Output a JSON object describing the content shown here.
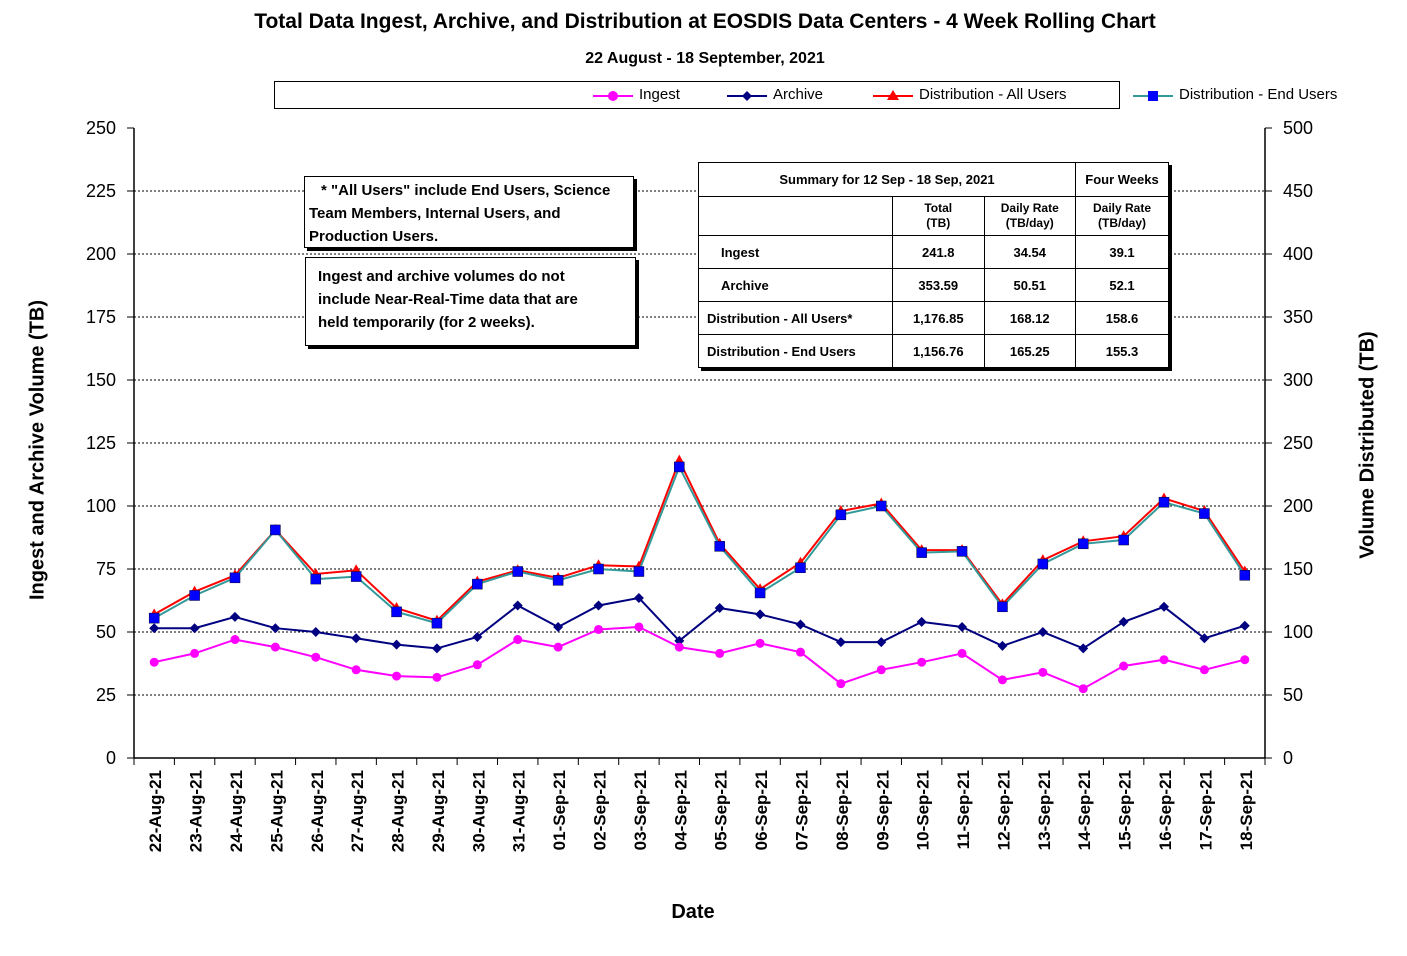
{
  "title": "Total Data Ingest, Archive, and  Distribution at EOSDIS Data Centers - 4 Week Rolling Chart",
  "subtitle": "22  August   -  18  September,  2021",
  "legend": {
    "ingest": "Ingest",
    "archive": "Archive",
    "dist_all": "Distribution - All Users",
    "dist_end": "Distribution - End Users"
  },
  "notes": {
    "all_users_line1": "* \"All Users\" include End Users, Science",
    "all_users_line2": "Team Members,  Internal Users, and",
    "all_users_line3": "Production Users.",
    "nrt_line1": "Ingest and archive volumes do not",
    "nrt_line2": "include Near-Real-Time data that are",
    "nrt_line3": "held temporarily (for 2 weeks)."
  },
  "summary": {
    "heading": "Summary  for  12  Sep   -  18  Sep,  2021",
    "four_weeks": "Four Weeks",
    "col_total_1": "Total",
    "col_total_2": "(TB)",
    "col_rate_1": "Daily Rate",
    "col_rate_2": "(TB/day)",
    "col_4w_1": "Daily Rate",
    "col_4w_2": "(TB/day)",
    "rows": [
      {
        "label": "Ingest",
        "total": "241.8",
        "rate": "34.54",
        "four": "39.1"
      },
      {
        "label": "Archive",
        "total": "353.59",
        "rate": "50.51",
        "four": "52.1"
      },
      {
        "label": "Distribution - All Users*",
        "total": "1,176.85",
        "rate": "168.12",
        "four": "158.6"
      },
      {
        "label": "Distribution - End Users",
        "total": "1,156.76",
        "rate": "165.25",
        "four": "155.3"
      }
    ]
  },
  "axis_labels": {
    "left": "Ingest and Archive Volume (TB)",
    "right": "Volume Distributed (TB)",
    "x": "Date"
  },
  "colors": {
    "ingest": "#ff00ff",
    "archive": "#000080",
    "dist_all": "#ff0000",
    "dist_end": "#0000ff",
    "dist_end_line": "#339999"
  },
  "chart_data": {
    "type": "line",
    "categories": [
      "22-Aug-21",
      "23-Aug-21",
      "24-Aug-21",
      "25-Aug-21",
      "26-Aug-21",
      "27-Aug-21",
      "28-Aug-21",
      "29-Aug-21",
      "30-Aug-21",
      "31-Aug-21",
      "01-Sep-21",
      "02-Sep-21",
      "03-Sep-21",
      "04-Sep-21",
      "05-Sep-21",
      "06-Sep-21",
      "07-Sep-21",
      "08-Sep-21",
      "09-Sep-21",
      "10-Sep-21",
      "11-Sep-21",
      "12-Sep-21",
      "13-Sep-21",
      "14-Sep-21",
      "15-Sep-21",
      "16-Sep-21",
      "17-Sep-21",
      "18-Sep-21"
    ],
    "y_left": {
      "min": 0,
      "max": 250,
      "ticks": [
        0,
        25,
        50,
        75,
        100,
        125,
        150,
        175,
        200,
        225,
        250
      ]
    },
    "y_right": {
      "min": 0,
      "max": 500,
      "ticks": [
        0,
        50,
        100,
        150,
        200,
        250,
        300,
        350,
        400,
        450,
        500
      ]
    },
    "grid": "horizontal dotted",
    "legend_position": "top",
    "series": [
      {
        "name": "Ingest",
        "axis": "left",
        "marker": "circle",
        "values": [
          38,
          41.5,
          47,
          44,
          40,
          35,
          32.5,
          32,
          37,
          47,
          44,
          51,
          52,
          44,
          41.5,
          45.5,
          42,
          29.5,
          35,
          38,
          41.5,
          31,
          34,
          27.5,
          36.5,
          39,
          35,
          39
        ]
      },
      {
        "name": "Archive",
        "axis": "left",
        "marker": "diamond",
        "values": [
          51.5,
          51.5,
          56,
          51.5,
          50,
          47.5,
          45,
          43.5,
          48,
          60.5,
          52,
          60.5,
          63.5,
          46.5,
          59.5,
          57,
          53,
          46,
          46,
          54,
          52,
          44.5,
          50,
          43.5,
          54,
          60,
          47.5,
          52.5
        ]
      },
      {
        "name": "Distribution - All Users",
        "axis": "right",
        "marker": "triangle",
        "values": [
          114,
          132,
          145,
          181,
          146,
          149,
          119,
          109,
          140,
          149,
          143,
          153,
          152,
          236,
          170,
          134,
          155,
          196,
          202,
          165,
          165,
          122,
          157,
          172,
          176,
          206,
          196,
          148
        ]
      },
      {
        "name": "Distribution - End Users",
        "axis": "right",
        "marker": "square",
        "values": [
          111,
          129,
          143,
          181,
          142,
          144,
          116,
          107,
          138,
          148,
          141,
          150,
          148,
          231,
          168,
          131,
          151,
          193,
          200,
          163,
          164,
          120,
          154,
          170,
          173,
          203,
          194,
          145
        ]
      }
    ]
  }
}
